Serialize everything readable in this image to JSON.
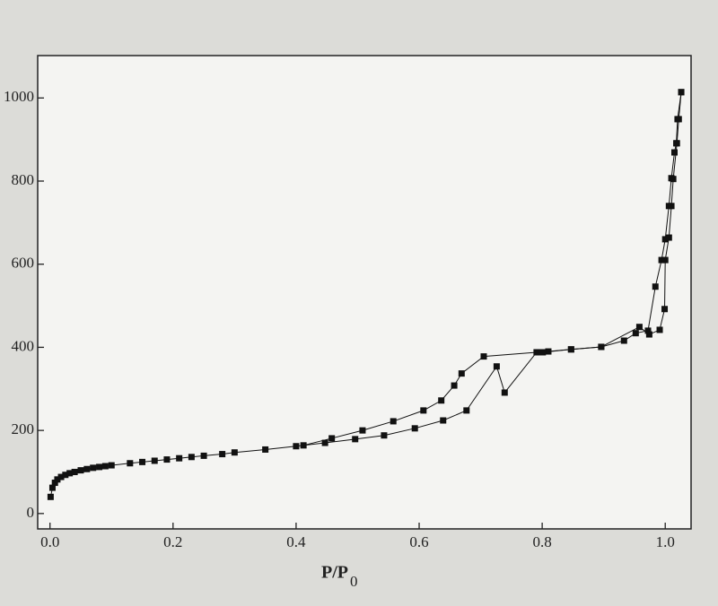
{
  "chart_data": {
    "type": "scatter-line",
    "marker": "square",
    "xlabel": "P/P",
    "xlabel_sub": "0",
    "xlim": [
      -0.02,
      1.042
    ],
    "ylim": [
      -37,
      1102
    ],
    "xticks": [
      {
        "value": 0,
        "label": "0.0"
      },
      0.2,
      0.4,
      0.6,
      0.8,
      {
        "value": 1,
        "label": "1.0"
      }
    ],
    "yticks": [
      0,
      200,
      400,
      600,
      800,
      1000
    ],
    "series": [
      {
        "color": "#111111",
        "x": [
          0.001,
          0.004,
          0.008,
          0.012,
          0.018,
          0.025,
          0.032,
          0.04,
          0.05,
          0.06,
          0.07,
          0.08,
          0.09,
          0.1,
          0.13,
          0.15,
          0.17,
          0.19,
          0.21,
          0.23,
          0.25,
          0.28,
          0.3,
          0.35,
          0.4,
          0.447,
          0.496,
          0.543,
          0.593,
          0.639,
          0.677,
          0.726,
          0.739,
          0.791,
          0.81,
          0.847,
          0.896,
          0.933,
          0.952,
          0.972,
          0.984,
          0.994,
          1.0,
          1.006,
          1.01,
          1.015,
          1.018,
          1.02,
          1.026
        ],
        "values": [
          40,
          62,
          74,
          82,
          88,
          93,
          97,
          100,
          104,
          107,
          110,
          112,
          114,
          116,
          121,
          124,
          127,
          130,
          133,
          136,
          139,
          143,
          147,
          154,
          162,
          170,
          179,
          188,
          205,
          224,
          248,
          354,
          291,
          388,
          390,
          395,
          401,
          416,
          434,
          440,
          546,
          610,
          660,
          740,
          807,
          869,
          891,
          949,
          1014
        ]
      },
      {
        "color": "#111111",
        "x": [
          1.026,
          1.022,
          1.019,
          1.013,
          1.01,
          1.006,
          1.0,
          0.999,
          0.991,
          0.974,
          0.958,
          0.896,
          0.847,
          0.801,
          0.791,
          0.705,
          0.669,
          0.657,
          0.636,
          0.607,
          0.558,
          0.508,
          0.458,
          0.412
        ],
        "values": [
          1014,
          949,
          891,
          805,
          740,
          664,
          610,
          492,
          442,
          431,
          449,
          401,
          395,
          388,
          388,
          378,
          337,
          308,
          272,
          248,
          222,
          200,
          181,
          164
        ]
      }
    ]
  }
}
